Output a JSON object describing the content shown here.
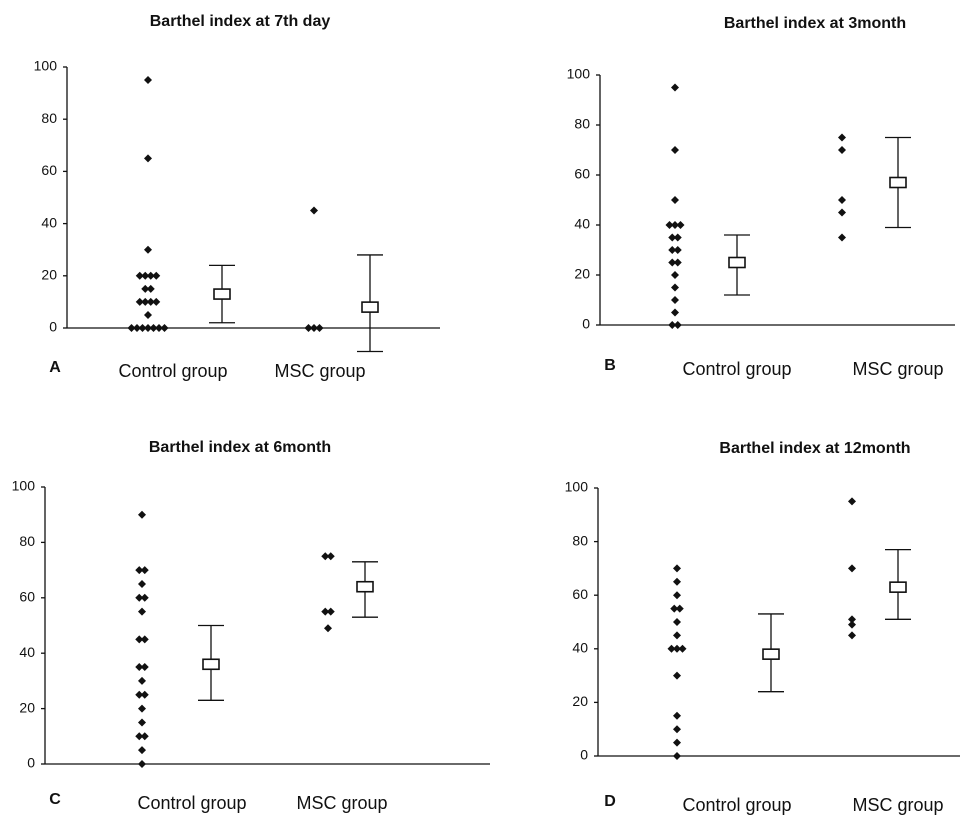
{
  "chart_data": [
    {
      "type": "dotplot",
      "panel_label": "A",
      "title": "Barthel index at 7th day",
      "categories": [
        "Control group",
        "MSC group"
      ],
      "values": [
        [
          95,
          65,
          30,
          20,
          20,
          20,
          20,
          15,
          15,
          10,
          10,
          10,
          10,
          5,
          0,
          0,
          0,
          0,
          0,
          0,
          0
        ],
        [
          45,
          0,
          0,
          0
        ]
      ],
      "mean": [
        13,
        8
      ],
      "error_low": [
        2,
        -9
      ],
      "error_high": [
        24,
        28
      ],
      "ylim": [
        0,
        100
      ],
      "yticks": [
        0,
        20,
        40,
        60,
        80,
        100
      ],
      "color": "#111111"
    },
    {
      "type": "dotplot",
      "panel_label": "B",
      "title": "Barthel index at 3month",
      "categories": [
        "Control group",
        "MSC group"
      ],
      "values": [
        [
          95,
          70,
          50,
          40,
          40,
          40,
          35,
          35,
          30,
          30,
          25,
          25,
          20,
          15,
          10,
          5,
          0,
          0
        ],
        [
          75,
          70,
          50,
          45,
          35
        ]
      ],
      "mean": [
        25,
        57
      ],
      "error_low": [
        12,
        39
      ],
      "error_high": [
        36,
        75
      ],
      "ylim": [
        0,
        100
      ],
      "yticks": [
        0,
        20,
        40,
        60,
        80,
        100
      ],
      "color": "#111111"
    },
    {
      "type": "dotplot",
      "panel_label": "C",
      "title": "Barthel index at 6month",
      "categories": [
        "Control group",
        "MSC group"
      ],
      "values": [
        [
          90,
          70,
          70,
          65,
          60,
          60,
          55,
          45,
          45,
          35,
          35,
          30,
          25,
          25,
          20,
          15,
          10,
          10,
          5,
          0
        ],
        [
          75,
          75,
          55,
          55,
          49
        ]
      ],
      "mean": [
        36,
        64
      ],
      "error_low": [
        23,
        53
      ],
      "error_high": [
        50,
        73
      ],
      "ylim": [
        0,
        100
      ],
      "yticks": [
        0,
        20,
        40,
        60,
        80,
        100
      ],
      "color": "#111111"
    },
    {
      "type": "dotplot",
      "panel_label": "D",
      "title": "Barthel index at 12month",
      "categories": [
        "Control group",
        "MSC group"
      ],
      "values": [
        [
          70,
          65,
          60,
          55,
          55,
          50,
          45,
          40,
          40,
          40,
          30,
          15,
          10,
          5,
          0
        ],
        [
          95,
          70,
          51,
          49,
          45
        ]
      ],
      "mean": [
        38,
        63
      ],
      "error_low": [
        24,
        51
      ],
      "error_high": [
        53,
        77
      ],
      "ylim": [
        0,
        100
      ],
      "yticks": [
        0,
        20,
        40,
        60,
        80,
        100
      ],
      "color": "#111111"
    }
  ]
}
